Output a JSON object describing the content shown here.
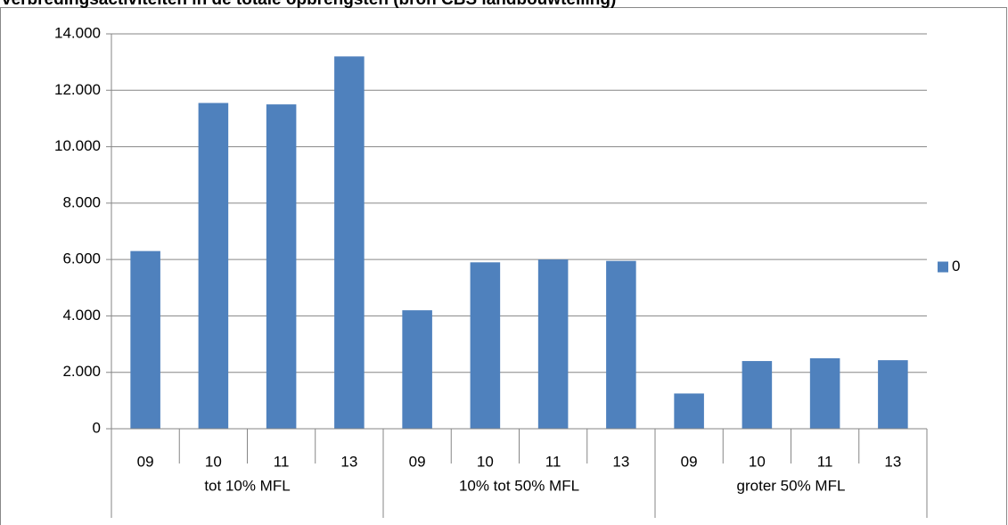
{
  "chart_data": {
    "type": "bar",
    "title": "verbredingsactiviteiten in de totale opbrengsten (bron CBS landbouwtelling)",
    "categories": [
      "09",
      "10",
      "11",
      "13",
      "09",
      "10",
      "11",
      "13",
      "09",
      "10",
      "11",
      "13"
    ],
    "groups": [
      "tot 10% MFL",
      "10% tot 50% MFL",
      "groter 50% MFL"
    ],
    "series": [
      {
        "name": "0",
        "color": "#4f81bd",
        "values": [
          6300,
          11550,
          11500,
          13200,
          4200,
          5900,
          6000,
          5950,
          1250,
          2400,
          2500,
          2430
        ]
      }
    ],
    "ylim": [
      0,
      14000
    ],
    "yticks": [
      0,
      {
        "value": 2000,
        "label": "2.000"
      },
      {
        "value": 4000,
        "label": "4.000"
      },
      {
        "value": 6000,
        "label": "6.000"
      },
      {
        "value": 8000,
        "label": "8.000"
      },
      {
        "value": 10000,
        "label": "10.000"
      },
      {
        "value": 12000,
        "label": "12.000"
      },
      {
        "value": 14000,
        "label": "14.000"
      }
    ],
    "grid": true,
    "legend": "right"
  }
}
